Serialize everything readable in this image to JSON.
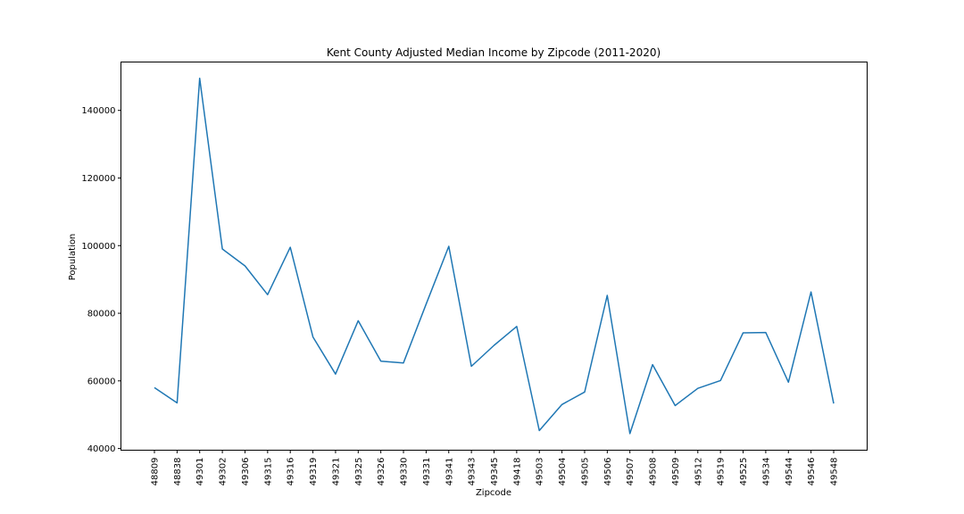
{
  "chart_data": {
    "type": "line",
    "title": "Kent County Adjusted Median Income by Zipcode (2011-2020)",
    "xlabel": "Zipcode",
    "ylabel": "Population",
    "categories": [
      "48809",
      "48838",
      "49301",
      "49302",
      "49306",
      "49315",
      "49316",
      "49319",
      "49321",
      "49325",
      "49326",
      "49330",
      "49331",
      "49341",
      "49343",
      "49345",
      "49418",
      "49503",
      "49504",
      "49505",
      "49506",
      "49507",
      "49508",
      "49509",
      "49512",
      "49519",
      "49525",
      "49534",
      "49544",
      "49546",
      "49548"
    ],
    "series": [
      {
        "values": [
          58000,
          53500,
          149500,
          99000,
          94000,
          85500,
          99500,
          73000,
          62000,
          77800,
          65800,
          65300,
          82700,
          99800,
          64300,
          70500,
          76100,
          45300,
          53000,
          56700,
          85300,
          44400,
          64800,
          52700,
          57800,
          60100,
          74200,
          74300,
          59600,
          86300,
          53300
        ],
        "color": "#1f77b4"
      }
    ],
    "ylim": [
      39500,
      154300
    ],
    "yticks": [
      40000,
      60000,
      80000,
      100000,
      120000,
      140000
    ],
    "grid": false,
    "legend": "none"
  }
}
